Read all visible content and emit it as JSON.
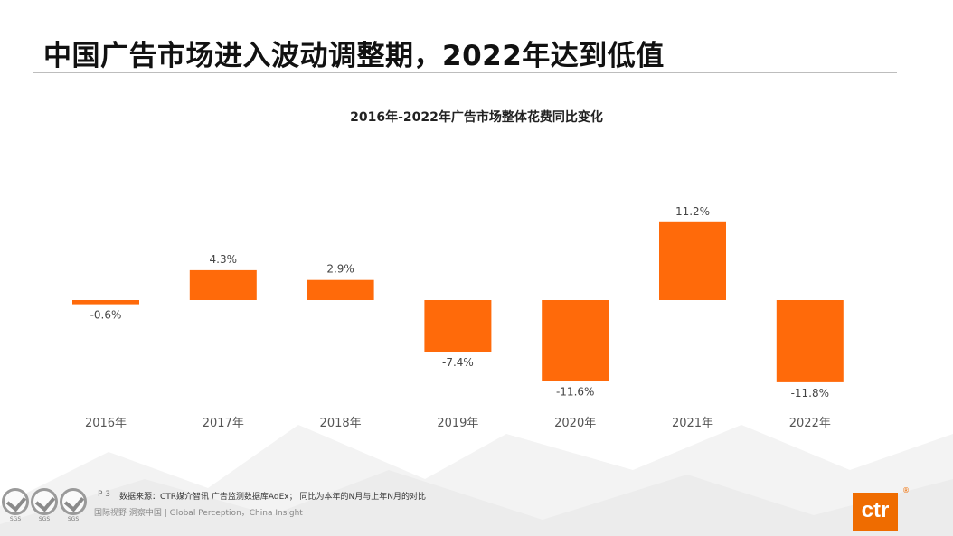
{
  "slide": {
    "title": "中国广告市场进入波动调整期，2022年达到低值"
  },
  "chart_data": {
    "type": "bar",
    "title": "2016年-2022年广告市场整体花费同比变化",
    "categories": [
      "2016年",
      "2017年",
      "2018年",
      "2019年",
      "2020年",
      "2021年",
      "2022年"
    ],
    "values": [
      -0.6,
      4.3,
      2.9,
      -7.4,
      -11.6,
      11.2,
      -11.8
    ],
    "value_labels": [
      "-0.6%",
      "4.3%",
      "2.9%",
      "-7.4%",
      "-11.6%",
      "11.2%",
      "-11.8%"
    ],
    "unit": "%",
    "ylim": [
      -13,
      13
    ],
    "grid": false,
    "bar_color": "#ff6a0a"
  },
  "footer": {
    "page": "P 3",
    "source": "数据来源：CTR媒介智讯 广告监测数据库AdEx；  同比为本年的N月与上年N月的对比",
    "tagline": "国际视野  洞察中国 |  Global Perception，China Insight",
    "badge_text": [
      "SGS",
      "SGS",
      "SGS"
    ],
    "logo_text": "ctr",
    "logo_mark": "®"
  }
}
